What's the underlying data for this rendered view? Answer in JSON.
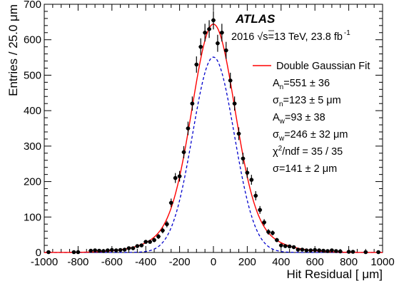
{
  "chart_data": {
    "type": "scatter",
    "title": "",
    "experiment_label": "ATLAS",
    "energy_text": "2016  √s=13 TeV, 23.8 fb",
    "energy_exponent": "-1",
    "xlabel": "Hit Residual [ μm]",
    "ylabel": "Entries / 25.0  μm",
    "xlim": [
      -1000,
      1000
    ],
    "ylim": [
      0,
      700
    ],
    "x_ticks": [
      -1000,
      -800,
      -600,
      -400,
      -200,
      0,
      200,
      400,
      600,
      800,
      1000
    ],
    "x_tick_labels": [
      "-1000",
      "-800",
      "-600",
      "-400",
      "-200",
      "0",
      "200",
      "400",
      "600",
      "800",
      "1000"
    ],
    "y_ticks": [
      0,
      100,
      200,
      300,
      400,
      500,
      600,
      700
    ],
    "y_tick_labels": [
      "0",
      "100",
      "200",
      "300",
      "400",
      "500",
      "600",
      "700"
    ],
    "grid": false,
    "legend_position": "top-right",
    "legend": [
      {
        "label": "Double Gaussian Fit",
        "color": "#ff0000",
        "style": "line"
      }
    ],
    "fit_parameters": [
      {
        "symbol": "A",
        "sub": "n",
        "sup": "",
        "text": "=551 ± 36"
      },
      {
        "symbol": "σ",
        "sub": "n",
        "sup": "",
        "text": "=123 ± 5 μm"
      },
      {
        "symbol": "A",
        "sub": "w",
        "sup": "",
        "text": "=93 ± 38"
      },
      {
        "symbol": "σ",
        "sub": "w",
        "sup": "",
        "text": "=246 ± 32 μm"
      },
      {
        "symbol": "χ",
        "sub": "",
        "sup": "2",
        "text": "/ndf = 35 / 35"
      },
      {
        "symbol": "σ",
        "sub": "",
        "sup": "",
        "text": "=141 ± 2 μm"
      }
    ],
    "fit": {
      "A_n": 551,
      "sigma_n": 123,
      "A_w": 93,
      "sigma_w": 246,
      "mean": 0
    },
    "colors": {
      "fit": "#ff0000",
      "narrow_component": "#0000cc",
      "data": "#000000"
    },
    "series": [
      {
        "name": "Data",
        "x": [
          -975,
          -825,
          -800,
          -725,
          -700,
          -675,
          -650,
          -625,
          -600,
          -575,
          -550,
          -525,
          -500,
          -475,
          -450,
          -425,
          -400,
          -375,
          -350,
          -325,
          -300,
          -275,
          -250,
          -225,
          -200,
          -175,
          -150,
          -125,
          -100,
          -75,
          -50,
          -25,
          0,
          25,
          50,
          75,
          100,
          125,
          150,
          175,
          200,
          225,
          250,
          275,
          300,
          325,
          350,
          375,
          400,
          425,
          450,
          475,
          500,
          525,
          550,
          575,
          600,
          625,
          650,
          675,
          700,
          725,
          750,
          800,
          825,
          900,
          975
        ],
        "y": [
          1,
          1,
          1,
          5,
          6,
          5,
          4,
          6,
          7,
          6,
          7,
          8,
          12,
          12,
          18,
          20,
          30,
          30,
          35,
          45,
          62,
          80,
          140,
          210,
          215,
          283,
          350,
          420,
          530,
          580,
          620,
          630,
          655,
          590,
          620,
          570,
          485,
          420,
          335,
          265,
          225,
          205,
          160,
          120,
          85,
          58,
          55,
          35,
          20,
          18,
          17,
          15,
          8,
          8,
          6,
          6,
          7,
          6,
          5,
          4,
          6,
          4,
          3,
          2,
          2,
          1,
          1
        ],
        "yerr": [
          1,
          1,
          1,
          2,
          2,
          2,
          2,
          2,
          3,
          2,
          3,
          3,
          3,
          3,
          4,
          4,
          5,
          5,
          6,
          7,
          8,
          9,
          12,
          14,
          15,
          17,
          19,
          20,
          23,
          24,
          25,
          25,
          26,
          24,
          25,
          24,
          22,
          20,
          18,
          16,
          15,
          14,
          13,
          11,
          9,
          8,
          7,
          6,
          4,
          4,
          4,
          4,
          3,
          3,
          2,
          2,
          3,
          2,
          2,
          2,
          2,
          2,
          2,
          1,
          1,
          1,
          1
        ]
      }
    ]
  }
}
